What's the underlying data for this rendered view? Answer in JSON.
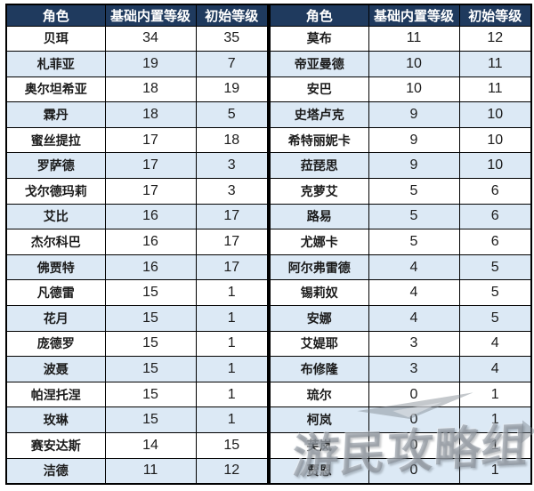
{
  "colors": {
    "header_bg": "#1F3A5E",
    "header_text": "#FFFFFF",
    "alt_row_bg": "#DCE9F5",
    "cell_text": "#1B1B1B",
    "border": "#000000"
  },
  "watermark": {
    "text": "游民攻略组"
  },
  "chart_data": [
    {
      "type": "table",
      "columns": [
        "角色",
        "基础内置等级",
        "初始等级"
      ],
      "rows": [
        [
          "贝珥",
          "34",
          "35"
        ],
        [
          "札菲亚",
          "19",
          "7"
        ],
        [
          "奥尔坦希亚",
          "18",
          "19"
        ],
        [
          "霖丹",
          "18",
          "5"
        ],
        [
          "蜜丝提拉",
          "17",
          "18"
        ],
        [
          "罗萨德",
          "17",
          "3"
        ],
        [
          "戈尔德玛莉",
          "17",
          "3"
        ],
        [
          "艾比",
          "16",
          "17"
        ],
        [
          "杰尔科巴",
          "16",
          "17"
        ],
        [
          "佛贾特",
          "16",
          "17"
        ],
        [
          "凡德雷",
          "15",
          "1"
        ],
        [
          "花月",
          "15",
          "1"
        ],
        [
          "庞德罗",
          "15",
          "1"
        ],
        [
          "波聂",
          "15",
          "1"
        ],
        [
          "帕涅托涅",
          "15",
          "1"
        ],
        [
          "玫琳",
          "15",
          "1"
        ],
        [
          "赛安达斯",
          "14",
          "15"
        ],
        [
          "洁德",
          "11",
          "12"
        ]
      ]
    },
    {
      "type": "table",
      "columns": [
        "角色",
        "基础内置等级",
        "初始等级"
      ],
      "rows": [
        [
          "莫布",
          "11",
          "12"
        ],
        [
          "帝亚曼德",
          "10",
          "11"
        ],
        [
          "安巴",
          "10",
          "11"
        ],
        [
          "史塔卢克",
          "9",
          "10"
        ],
        [
          "希特丽妮卡",
          "9",
          "10"
        ],
        [
          "菈琵思",
          "9",
          "10"
        ],
        [
          "克萝艾",
          "5",
          "6"
        ],
        [
          "路易",
          "5",
          "6"
        ],
        [
          "尤娜卡",
          "5",
          "6"
        ],
        [
          "阿尔弗雷德",
          "4",
          "5"
        ],
        [
          "锡莉奴",
          "4",
          "5"
        ],
        [
          "安娜",
          "4",
          "5"
        ],
        [
          "艾媞耶",
          "3",
          "4"
        ],
        [
          "布修隆",
          "3",
          "4"
        ],
        [
          "琉尔",
          "0",
          "1"
        ],
        [
          "柯岚",
          "0",
          "1"
        ],
        [
          "芙岚",
          "0",
          "1"
        ],
        [
          "贾恩",
          "0",
          "1"
        ]
      ]
    }
  ]
}
